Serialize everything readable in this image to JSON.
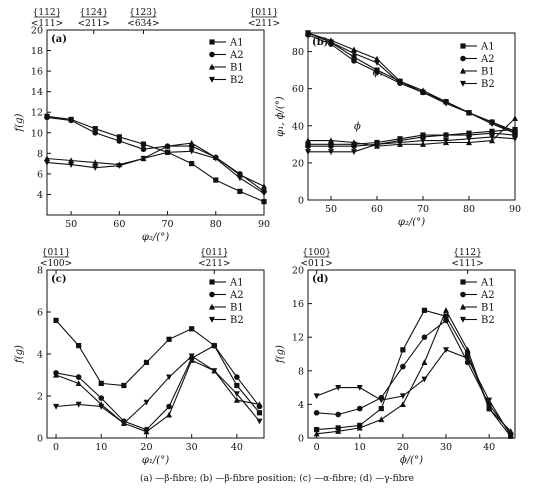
{
  "caption": "(a) —β-fibre; (b) —β-fibre position; (c) —α-fibre; (d) —γ-fibre",
  "chart_data": [
    {
      "type": "line",
      "panel_label": "(a)",
      "ylabel": "f(g)",
      "xlabel": "φ₂/(°)",
      "xlim": [
        45,
        90
      ],
      "ylim": [
        2,
        20
      ],
      "xticks": [
        50,
        60,
        70,
        80,
        90
      ],
      "yticks": [
        4,
        6,
        8,
        10,
        12,
        14,
        16,
        18,
        20
      ],
      "top_ticks": [
        {
          "x": 45,
          "upper": "{112}",
          "lower": "<111>"
        },
        {
          "x": 54.7,
          "upper": "{124}",
          "lower": "<211>"
        },
        {
          "x": 65,
          "upper": "{123}",
          "lower": "<634>"
        },
        {
          "x": 90,
          "upper": "{011}",
          "lower": "<211>"
        }
      ],
      "legend_position": "top-right",
      "series": [
        {
          "name": "A1",
          "marker": "square",
          "x": [
            45,
            50,
            55,
            60,
            65,
            70,
            75,
            80,
            85,
            90
          ],
          "y": [
            11.6,
            11.3,
            10.4,
            9.6,
            8.9,
            8.1,
            7.0,
            5.4,
            4.3,
            3.3
          ]
        },
        {
          "name": "A2",
          "marker": "circle",
          "x": [
            45,
            50,
            55,
            60,
            65,
            70,
            75,
            80,
            85,
            90
          ],
          "y": [
            11.5,
            11.2,
            10.0,
            9.2,
            8.4,
            8.7,
            8.7,
            7.6,
            6.0,
            4.3
          ]
        },
        {
          "name": "B1",
          "marker": "triangle-up",
          "x": [
            45,
            50,
            55,
            60,
            65,
            70,
            75,
            80,
            85,
            90
          ],
          "y": [
            7.5,
            7.3,
            7.1,
            6.9,
            7.5,
            8.7,
            9.0,
            7.6,
            5.9,
            4.8
          ]
        },
        {
          "name": "B2",
          "marker": "triangle-down",
          "x": [
            45,
            50,
            55,
            60,
            65,
            70,
            75,
            80,
            85,
            90
          ],
          "y": [
            7.1,
            6.9,
            6.6,
            6.8,
            7.5,
            8.1,
            8.2,
            7.5,
            5.6,
            4.1
          ]
        }
      ]
    },
    {
      "type": "line",
      "panel_label": "(b)",
      "ylabel": "φ₁, ϕ/(°)",
      "xlabel": "φ₂/(°)",
      "xlim": [
        45,
        90
      ],
      "ylim": [
        0,
        90
      ],
      "xticks": [
        50,
        60,
        70,
        80,
        90
      ],
      "yticks": [
        0,
        20,
        40,
        60,
        80
      ],
      "legend_position": "top-right",
      "annotations": [
        {
          "text": "φ₁",
          "x": 59,
          "y": 67
        },
        {
          "text": "ϕ",
          "x": 55,
          "y": 38
        }
      ],
      "series": [
        {
          "name": "A1",
          "marker": "square",
          "x": [
            45,
            50,
            55,
            60,
            65,
            70,
            75,
            80,
            85,
            90
          ],
          "y": [
            90,
            85,
            77,
            70,
            64,
            58,
            53,
            47,
            42,
            36
          ]
        },
        {
          "name": "A2",
          "marker": "circle",
          "x": [
            45,
            50,
            55,
            60,
            65,
            70,
            75,
            80,
            85,
            90
          ],
          "y": [
            89,
            84,
            75,
            69,
            63,
            58,
            53,
            47,
            42,
            37
          ]
        },
        {
          "name": "B1",
          "marker": "triangle-up",
          "x": [
            45,
            50,
            55,
            60,
            65,
            70,
            75,
            80,
            85,
            90
          ],
          "y": [
            90,
            86,
            81,
            76,
            64,
            59,
            53,
            47,
            42,
            37
          ]
        },
        {
          "name": "B2",
          "marker": "triangle-down",
          "x": [
            45,
            50,
            55,
            60,
            65,
            70,
            75,
            80,
            85,
            90
          ],
          "y": [
            90,
            85,
            79,
            74,
            63,
            58,
            52,
            47,
            41,
            36
          ]
        },
        {
          "name": "A1",
          "marker": "square",
          "x": [
            45,
            50,
            55,
            60,
            65,
            70,
            75,
            80,
            85,
            90
          ],
          "y": [
            30,
            30,
            30,
            31,
            33,
            35,
            35,
            36,
            37,
            38
          ]
        },
        {
          "name": "A2",
          "marker": "circle",
          "x": [
            45,
            50,
            55,
            60,
            65,
            70,
            75,
            80,
            85,
            90
          ],
          "y": [
            29,
            29,
            29,
            30,
            32,
            34,
            35,
            35,
            36,
            35
          ]
        },
        {
          "name": "B1",
          "marker": "triangle-up",
          "x": [
            45,
            50,
            55,
            60,
            65,
            70,
            75,
            80,
            85,
            90
          ],
          "y": [
            32,
            32,
            31,
            29,
            30,
            30,
            31,
            31,
            32,
            44
          ]
        },
        {
          "name": "B2",
          "marker": "triangle-down",
          "x": [
            45,
            50,
            55,
            60,
            65,
            70,
            75,
            80,
            85,
            90
          ],
          "y": [
            26,
            26,
            26,
            30,
            31,
            32,
            32,
            33,
            34,
            33
          ]
        }
      ]
    },
    {
      "type": "line",
      "panel_label": "(c)",
      "ylabel": "f(g)",
      "xlabel": "φ₁/(°)",
      "xlim": [
        -2,
        46
      ],
      "ylim": [
        0,
        8
      ],
      "xticks": [
        0,
        10,
        20,
        30,
        40
      ],
      "yticks": [
        0,
        2,
        4,
        6,
        8
      ],
      "top_ticks": [
        {
          "x": 0,
          "upper": "{011}",
          "lower": "<100>"
        },
        {
          "x": 35,
          "upper": "{011}",
          "lower": "<211>"
        }
      ],
      "legend_position": "top-right",
      "series": [
        {
          "name": "A1",
          "marker": "square",
          "x": [
            0,
            5,
            10,
            15,
            20,
            25,
            30,
            35,
            40,
            45
          ],
          "y": [
            5.6,
            4.4,
            2.6,
            2.5,
            3.6,
            4.7,
            5.2,
            4.4,
            2.5,
            1.2
          ]
        },
        {
          "name": "A2",
          "marker": "circle",
          "x": [
            0,
            5,
            10,
            15,
            20,
            25,
            30,
            35,
            40,
            45
          ],
          "y": [
            3.1,
            2.9,
            1.9,
            0.8,
            0.4,
            1.5,
            3.8,
            4.4,
            2.9,
            1.5
          ]
        },
        {
          "name": "B1",
          "marker": "triangle-up",
          "x": [
            0,
            5,
            10,
            15,
            20,
            25,
            30,
            35,
            40,
            45
          ],
          "y": [
            3.0,
            2.6,
            1.6,
            0.7,
            0.3,
            1.1,
            3.7,
            3.2,
            1.8,
            1.6
          ]
        },
        {
          "name": "B2",
          "marker": "triangle-down",
          "x": [
            0,
            5,
            10,
            15,
            20,
            25,
            30,
            35,
            40,
            45
          ],
          "y": [
            1.5,
            1.6,
            1.5,
            0.7,
            1.7,
            2.9,
            3.9,
            3.2,
            2.1,
            0.8
          ]
        }
      ]
    },
    {
      "type": "line",
      "panel_label": "(d)",
      "ylabel": "f(g)",
      "xlabel": "ϕ/(°)",
      "xlim": [
        -2,
        46
      ],
      "ylim": [
        0,
        20
      ],
      "xticks": [
        0,
        10,
        20,
        30,
        40
      ],
      "yticks": [
        0,
        4,
        8,
        12,
        16,
        20
      ],
      "top_ticks": [
        {
          "x": 0,
          "upper": "{100}",
          "lower": "<011>"
        },
        {
          "x": 35,
          "upper": "{112}",
          "lower": "<111>"
        }
      ],
      "legend_position": "top-right",
      "series": [
        {
          "name": "A1",
          "marker": "square",
          "x": [
            0,
            5,
            10,
            15,
            20,
            25,
            30,
            35,
            40,
            45
          ],
          "y": [
            1.0,
            1.2,
            1.5,
            3.5,
            10.5,
            15.2,
            14.5,
            10.0,
            3.5,
            0.2
          ]
        },
        {
          "name": "A2",
          "marker": "circle",
          "x": [
            0,
            5,
            10,
            15,
            20,
            25,
            30,
            35,
            40,
            45
          ],
          "y": [
            3.0,
            2.8,
            3.5,
            4.8,
            8.5,
            12.0,
            14.0,
            9.0,
            4.0,
            0.5
          ]
        },
        {
          "name": "B1",
          "marker": "triangle-up",
          "x": [
            0,
            5,
            10,
            15,
            20,
            25,
            30,
            35,
            40,
            45
          ],
          "y": [
            0.5,
            0.8,
            1.2,
            2.2,
            4.0,
            9.0,
            15.2,
            10.5,
            3.5,
            0.8
          ]
        },
        {
          "name": "B2",
          "marker": "triangle-down",
          "x": [
            0,
            5,
            10,
            15,
            20,
            25,
            30,
            35,
            40,
            45
          ],
          "y": [
            5.0,
            6.0,
            6.0,
            4.5,
            5.0,
            7.0,
            10.5,
            9.5,
            4.5,
            0.3
          ]
        }
      ]
    }
  ]
}
